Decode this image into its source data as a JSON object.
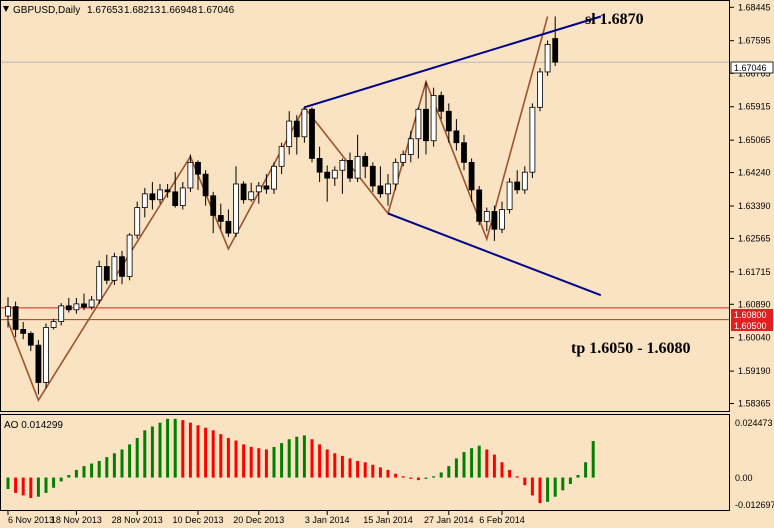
{
  "header": {
    "symbol": "GBPUSD,Daily",
    "open": "1.67653",
    "high": "1.68213",
    "low": "1.66948",
    "close": "1.67046"
  },
  "colors": {
    "background": "#f9e3c2",
    "candle_bull": "#ffffff",
    "candle_bear": "#000000",
    "zigzag": "#a0522d",
    "channel": "#00008b",
    "tp_line": "#e02020",
    "ao_up": "#008000",
    "ao_down": "#ff0000"
  },
  "annotations": {
    "sl_text": "sl 1.6870",
    "tp_text": "tp 1.6050 - 1.6080"
  },
  "price_boxes": {
    "current": "1.67046",
    "level_high": "1.60800",
    "level_low": "1.60500"
  },
  "ao_panel": {
    "label": "AO 0.014299",
    "ticks": [
      "0.024473",
      "0.00",
      "-0.012697"
    ]
  },
  "chart_data": {
    "type": "candlestick",
    "symbol": "GBPUSD",
    "timeframe": "Daily",
    "y_ticks": [
      "1.68445",
      "1.67595",
      "1.66765",
      "1.65915",
      "1.65065",
      "1.64240",
      "1.63390",
      "1.62565",
      "1.61715",
      "1.60890",
      "1.60040",
      "1.59190",
      "1.58365"
    ],
    "ylim": [
      1.5815,
      1.6863
    ],
    "x_ticks": [
      "6 Nov 2013",
      "18 Nov 2013",
      "28 Nov 2013",
      "10 Dec 2013",
      "20 Dec 2013",
      "3 Jan 2014",
      "15 Jan 2014",
      "27 Jan 2014",
      "6 Feb 2014"
    ],
    "x_tick_index": [
      0,
      9,
      17,
      25,
      33,
      42,
      50,
      58,
      65
    ],
    "candles": [
      [
        1.6059,
        1.6107,
        1.603,
        1.6083
      ],
      [
        1.6083,
        1.6096,
        1.6005,
        1.6025
      ],
      [
        1.6025,
        1.6044,
        1.6,
        1.6015
      ],
      [
        1.6015,
        1.602,
        1.597,
        1.5985
      ],
      [
        1.5985,
        1.5998,
        1.586,
        1.589
      ],
      [
        1.589,
        1.604,
        1.5875,
        1.603
      ],
      [
        1.603,
        1.6052,
        1.6025,
        1.6045
      ],
      [
        1.6045,
        1.6092,
        1.6035,
        1.6085
      ],
      [
        1.6085,
        1.6105,
        1.6068,
        1.6075
      ],
      [
        1.6075,
        1.6105,
        1.6065,
        1.609
      ],
      [
        1.609,
        1.6116,
        1.6074,
        1.6082
      ],
      [
        1.6082,
        1.611,
        1.6075,
        1.61
      ],
      [
        1.61,
        1.62,
        1.609,
        1.6185
      ],
      [
        1.6185,
        1.6215,
        1.614,
        1.615
      ],
      [
        1.615,
        1.622,
        1.6138,
        1.621
      ],
      [
        1.621,
        1.6225,
        1.614,
        1.616
      ],
      [
        1.616,
        1.627,
        1.615,
        1.6265
      ],
      [
        1.6265,
        1.635,
        1.6256,
        1.6335
      ],
      [
        1.6335,
        1.6385,
        1.631,
        1.637
      ],
      [
        1.637,
        1.64,
        1.633,
        1.6355
      ],
      [
        1.6355,
        1.6395,
        1.6345,
        1.638
      ],
      [
        1.638,
        1.6395,
        1.636,
        1.6375
      ],
      [
        1.6375,
        1.6425,
        1.6335,
        1.634
      ],
      [
        1.634,
        1.64,
        1.633,
        1.6385
      ],
      [
        1.6385,
        1.647,
        1.6375,
        1.645
      ],
      [
        1.645,
        1.6455,
        1.638,
        1.642
      ],
      [
        1.642,
        1.643,
        1.634,
        1.6365
      ],
      [
        1.6365,
        1.6375,
        1.627,
        1.6315
      ],
      [
        1.6315,
        1.6345,
        1.628,
        1.63
      ],
      [
        1.63,
        1.633,
        1.626,
        1.627
      ],
      [
        1.627,
        1.644,
        1.626,
        1.6395
      ],
      [
        1.6395,
        1.6402,
        1.6345,
        1.6355
      ],
      [
        1.6355,
        1.6398,
        1.635,
        1.6375
      ],
      [
        1.6375,
        1.64,
        1.6345,
        1.639
      ],
      [
        1.639,
        1.642,
        1.637,
        1.6382
      ],
      [
        1.6382,
        1.645,
        1.637,
        1.644
      ],
      [
        1.644,
        1.65,
        1.642,
        1.649
      ],
      [
        1.649,
        1.658,
        1.647,
        1.6555
      ],
      [
        1.6555,
        1.657,
        1.647,
        1.6515
      ],
      [
        1.6515,
        1.659,
        1.65,
        1.6585
      ],
      [
        1.6585,
        1.659,
        1.645,
        1.646
      ],
      [
        1.646,
        1.649,
        1.64,
        1.6425
      ],
      [
        1.6425,
        1.6442,
        1.635,
        1.641
      ],
      [
        1.641,
        1.644,
        1.639,
        1.643
      ],
      [
        1.643,
        1.646,
        1.637,
        1.6455
      ],
      [
        1.6455,
        1.6475,
        1.64,
        1.641
      ],
      [
        1.641,
        1.652,
        1.64,
        1.6465
      ],
      [
        1.6465,
        1.6475,
        1.641,
        1.644
      ],
      [
        1.644,
        1.645,
        1.6375,
        1.639
      ],
      [
        1.639,
        1.644,
        1.636,
        1.637
      ],
      [
        1.637,
        1.642,
        1.634,
        1.6395
      ],
      [
        1.6395,
        1.646,
        1.638,
        1.645
      ],
      [
        1.645,
        1.648,
        1.644,
        1.647
      ],
      [
        1.647,
        1.653,
        1.645,
        1.651
      ],
      [
        1.651,
        1.659,
        1.646,
        1.6585
      ],
      [
        1.6585,
        1.6655,
        1.647,
        1.6505
      ],
      [
        1.6505,
        1.664,
        1.649,
        1.662
      ],
      [
        1.662,
        1.663,
        1.656,
        1.658
      ],
      [
        1.658,
        1.66,
        1.65,
        1.653
      ],
      [
        1.653,
        1.656,
        1.648,
        1.65
      ],
      [
        1.65,
        1.652,
        1.643,
        1.645
      ],
      [
        1.645,
        1.646,
        1.635,
        1.638
      ],
      [
        1.638,
        1.639,
        1.629,
        1.63
      ],
      [
        1.63,
        1.6335,
        1.6275,
        1.6325
      ],
      [
        1.6325,
        1.634,
        1.625,
        1.628
      ],
      [
        1.628,
        1.635,
        1.627,
        1.633
      ],
      [
        1.633,
        1.641,
        1.632,
        1.64
      ],
      [
        1.64,
        1.643,
        1.637,
        1.638
      ],
      [
        1.638,
        1.644,
        1.637,
        1.6425
      ],
      [
        1.6425,
        1.66,
        1.641,
        1.659
      ],
      [
        1.659,
        1.669,
        1.658,
        1.668
      ],
      [
        1.668,
        1.676,
        1.667,
        1.675
      ],
      [
        1.6765,
        1.6821,
        1.6695,
        1.6705
      ]
    ],
    "zigzag": [
      [
        0,
        1.6045
      ],
      [
        4,
        1.5845
      ],
      [
        24,
        1.6465
      ],
      [
        29,
        1.623
      ],
      [
        39,
        1.659
      ],
      [
        50,
        1.632
      ],
      [
        55,
        1.6655
      ],
      [
        63,
        1.6255
      ],
      [
        71,
        1.6821
      ]
    ],
    "channel_upper": [
      [
        39,
        1.659
      ],
      [
        78,
        1.6821
      ]
    ],
    "channel_lower": [
      [
        50,
        1.632
      ],
      [
        78,
        1.6112
      ]
    ],
    "horizontal_levels": [
      1.608,
      1.605,
      1.67046
    ],
    "ao": {
      "values": [
        -0.0045,
        -0.006,
        -0.007,
        -0.008,
        -0.0075,
        -0.006,
        -0.004,
        -0.0015,
        0.001,
        0.003,
        0.0045,
        0.0055,
        0.0065,
        0.008,
        0.0095,
        0.011,
        0.013,
        0.0155,
        0.0185,
        0.02,
        0.0215,
        0.023,
        0.023,
        0.0225,
        0.0215,
        0.0205,
        0.0195,
        0.0185,
        0.017,
        0.0155,
        0.0145,
        0.013,
        0.012,
        0.0115,
        0.011,
        0.012,
        0.0135,
        0.015,
        0.016,
        0.0165,
        0.015,
        0.013,
        0.011,
        0.0095,
        0.0085,
        0.0075,
        0.0065,
        0.006,
        0.005,
        0.004,
        0.003,
        0.0015,
        0.0005,
        -0.0005,
        -0.001,
        -0.0005,
        0.0005,
        0.002,
        0.0045,
        0.0075,
        0.01,
        0.0115,
        0.0125,
        0.011,
        0.009,
        0.006,
        0.003,
        0.0005,
        -0.003,
        -0.007,
        -0.01,
        -0.0095,
        -0.0075,
        -0.005,
        -0.0025,
        0.001,
        0.006,
        0.0143
      ],
      "ylim": [
        -0.0127,
        0.0245
      ]
    }
  }
}
